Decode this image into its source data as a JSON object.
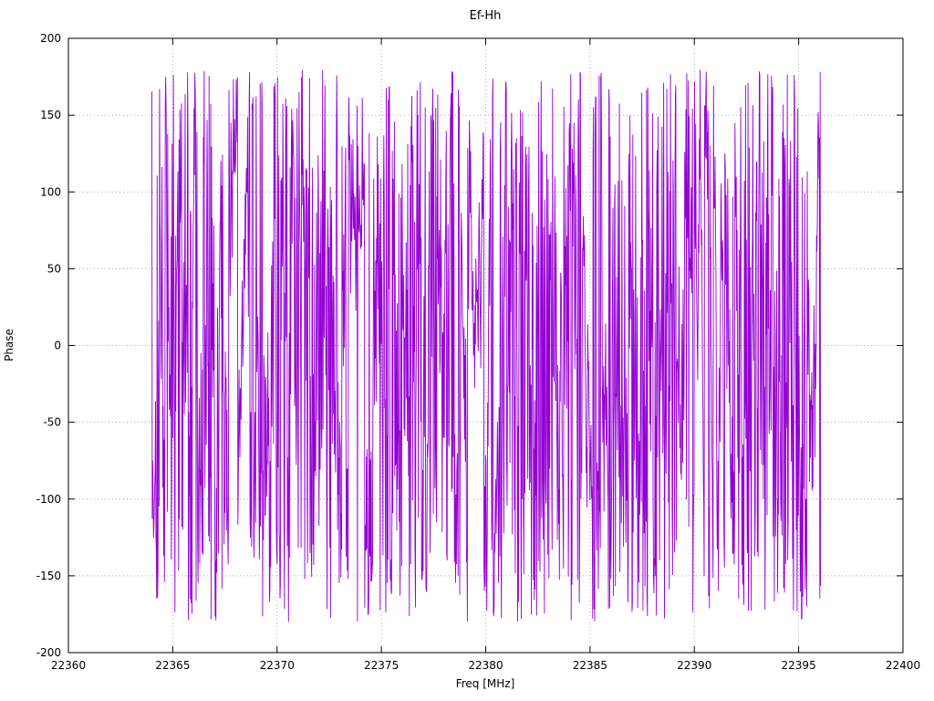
{
  "chart_data": {
    "type": "line",
    "title": "Ef-Hh",
    "xlabel": "Freq [MHz]",
    "ylabel": "Phase",
    "xlim": [
      22360,
      22400
    ],
    "ylim": [
      -200,
      200
    ],
    "x_ticks": [
      22360,
      22365,
      22370,
      22375,
      22380,
      22385,
      22390,
      22395,
      22400
    ],
    "y_ticks": [
      -200,
      -150,
      -100,
      -50,
      0,
      50,
      100,
      150,
      200
    ],
    "grid": "dotted",
    "legend": false,
    "colors": {
      "line": "#9400d3",
      "grid": "#8c8c8c",
      "axis": "#000000"
    },
    "series": [
      {
        "name": "Ef-Hh",
        "color": "#9400d3",
        "x_start": 22364.0,
        "x_end": 22396.05,
        "n_points": 1650,
        "y_min": -180,
        "y_max": 180,
        "pattern": "wrapped-phase-noise",
        "seed": 1337
      }
    ]
  }
}
